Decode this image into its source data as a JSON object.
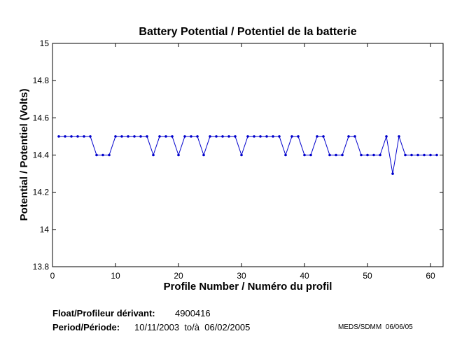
{
  "chart_data": {
    "type": "line",
    "title": "Battery Potential / Potentiel de la batterie",
    "xlabel": "Profile Number / Numéro du profil",
    "ylabel": "Potential / Potentiel (Volts)",
    "xlim": [
      0,
      62
    ],
    "ylim": [
      13.8,
      15
    ],
    "xticks": [
      0,
      10,
      20,
      30,
      40,
      50,
      60
    ],
    "yticks": [
      13.8,
      14,
      14.2,
      14.4,
      14.6,
      14.8,
      15
    ],
    "grid": false,
    "line_color": "#0000cc",
    "series": [
      {
        "x": [
          1,
          2,
          3,
          4,
          5,
          6,
          7,
          8,
          9,
          10,
          11,
          12,
          13,
          14,
          15,
          16,
          17,
          18,
          19,
          20,
          21,
          22,
          23,
          24,
          25,
          26,
          27,
          28,
          29,
          30,
          31,
          32,
          33,
          34,
          35,
          36,
          37,
          38,
          39,
          40,
          41,
          42,
          43,
          44,
          45,
          46,
          47,
          48,
          49,
          50,
          51,
          52,
          53,
          54,
          55,
          56,
          57,
          58,
          59,
          60,
          61
        ],
        "values": [
          14.5,
          14.5,
          14.5,
          14.5,
          14.5,
          14.5,
          14.4,
          14.4,
          14.4,
          14.5,
          14.5,
          14.5,
          14.5,
          14.5,
          14.5,
          14.4,
          14.5,
          14.5,
          14.5,
          14.4,
          14.5,
          14.5,
          14.5,
          14.4,
          14.5,
          14.5,
          14.5,
          14.5,
          14.5,
          14.4,
          14.5,
          14.5,
          14.5,
          14.5,
          14.5,
          14.5,
          14.4,
          14.5,
          14.5,
          14.4,
          14.4,
          14.5,
          14.5,
          14.4,
          14.4,
          14.4,
          14.5,
          14.5,
          14.4,
          14.4,
          14.4,
          14.4,
          14.5,
          14.3,
          14.5,
          14.4,
          14.4,
          14.4,
          14.4,
          14.4,
          14.4
        ]
      }
    ]
  },
  "footer": {
    "float_label": "Float/Profileur dérivant:",
    "float_value": "4900416",
    "period_label": "Period/Période:",
    "period_value": "10/11/2003  to/à  06/02/2005",
    "credit": "MEDS/SDMM  06/06/05"
  }
}
